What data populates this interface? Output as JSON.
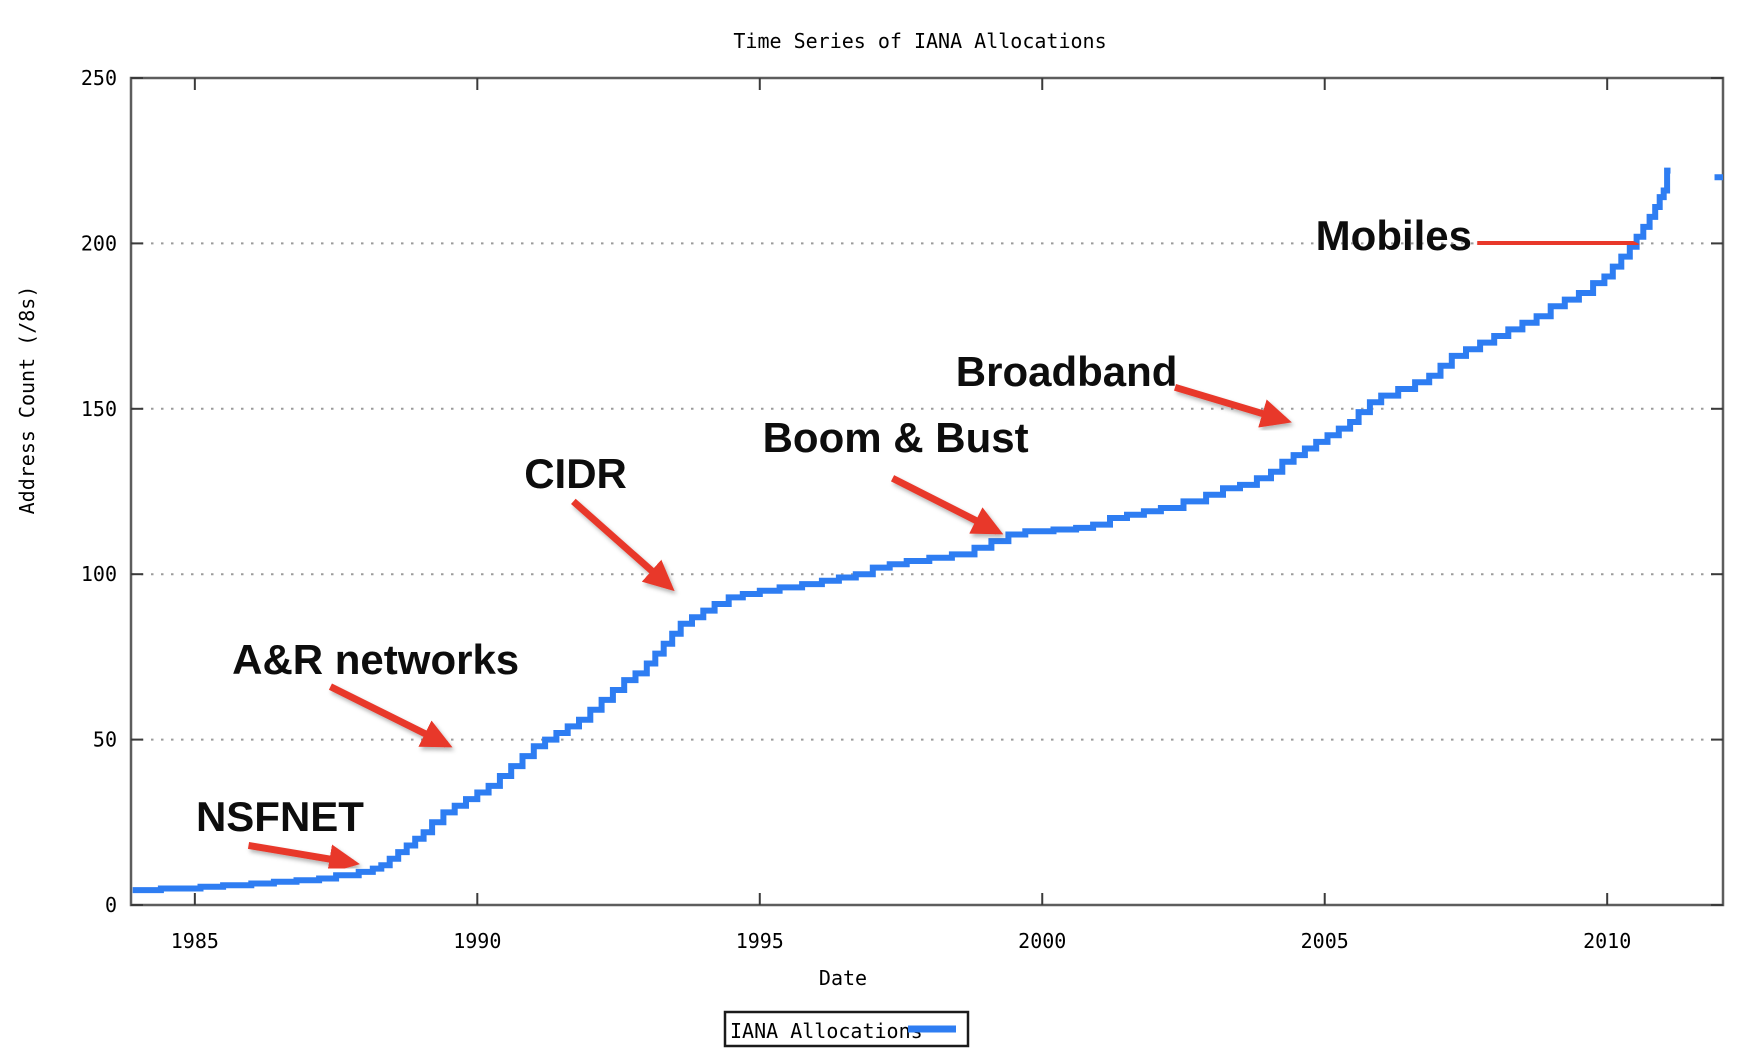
{
  "chart_data": {
    "type": "line",
    "title": "Time Series of IANA Allocations",
    "xlabel": "Date",
    "ylabel": "Address Count (/8s)",
    "xlim": [
      1983.87,
      2012.05
    ],
    "ylim": [
      0,
      250
    ],
    "x_ticks": [
      1985,
      1990,
      1995,
      2000,
      2005,
      2010
    ],
    "x_tick_labels": [
      "1985",
      "1990",
      "1995",
      "2000",
      "2005",
      "2010"
    ],
    "y_ticks": [
      0,
      50,
      100,
      150,
      200,
      250
    ],
    "y_tick_labels": [
      "0",
      "50",
      "100",
      "150",
      "200",
      "250"
    ],
    "grid_y": [
      50,
      100,
      150,
      200
    ],
    "grid_style": "dotted",
    "legend_position": "bottom-center",
    "line_color": "#2e7df2",
    "annotation_color": "#e8392b",
    "legend": {
      "label": "IANA Allocations"
    },
    "series": [
      {
        "name": "IANA Allocations",
        "step": true,
        "points": [
          [
            1983.9,
            4.5
          ],
          [
            1984.4,
            5
          ],
          [
            1985.1,
            5.5
          ],
          [
            1985.5,
            6
          ],
          [
            1986.0,
            6.5
          ],
          [
            1986.4,
            7
          ],
          [
            1986.8,
            7.5
          ],
          [
            1987.2,
            8
          ],
          [
            1987.5,
            9
          ],
          [
            1987.9,
            10
          ],
          [
            1988.15,
            11
          ],
          [
            1988.3,
            12
          ],
          [
            1988.45,
            14
          ],
          [
            1988.6,
            16
          ],
          [
            1988.75,
            18
          ],
          [
            1988.9,
            20
          ],
          [
            1989.05,
            22
          ],
          [
            1989.2,
            25
          ],
          [
            1989.4,
            28
          ],
          [
            1989.6,
            30
          ],
          [
            1989.8,
            32
          ],
          [
            1990.0,
            34
          ],
          [
            1990.2,
            36
          ],
          [
            1990.4,
            39
          ],
          [
            1990.6,
            42
          ],
          [
            1990.8,
            45
          ],
          [
            1991.0,
            48
          ],
          [
            1991.2,
            50
          ],
          [
            1991.4,
            52
          ],
          [
            1991.6,
            54
          ],
          [
            1991.8,
            56
          ],
          [
            1992.0,
            59
          ],
          [
            1992.2,
            62
          ],
          [
            1992.4,
            65
          ],
          [
            1992.6,
            68
          ],
          [
            1992.8,
            70
          ],
          [
            1993.0,
            73
          ],
          [
            1993.15,
            76
          ],
          [
            1993.3,
            79
          ],
          [
            1993.45,
            82
          ],
          [
            1993.6,
            85
          ],
          [
            1993.8,
            87
          ],
          [
            1994.0,
            89
          ],
          [
            1994.2,
            91
          ],
          [
            1994.45,
            93
          ],
          [
            1994.7,
            94
          ],
          [
            1995.0,
            95
          ],
          [
            1995.35,
            96
          ],
          [
            1995.75,
            97
          ],
          [
            1996.1,
            98
          ],
          [
            1996.4,
            99
          ],
          [
            1996.7,
            100
          ],
          [
            1997.0,
            102
          ],
          [
            1997.3,
            103
          ],
          [
            1997.6,
            104
          ],
          [
            1998.0,
            105
          ],
          [
            1998.4,
            106
          ],
          [
            1998.8,
            108
          ],
          [
            1999.1,
            110
          ],
          [
            1999.4,
            112
          ],
          [
            1999.7,
            113
          ],
          [
            2000.2,
            113.5
          ],
          [
            2000.6,
            114
          ],
          [
            2000.9,
            115
          ],
          [
            2001.2,
            117
          ],
          [
            2001.5,
            118
          ],
          [
            2001.8,
            119
          ],
          [
            2002.1,
            120
          ],
          [
            2002.5,
            122
          ],
          [
            2002.9,
            124
          ],
          [
            2003.2,
            126
          ],
          [
            2003.5,
            127
          ],
          [
            2003.8,
            129
          ],
          [
            2004.05,
            131
          ],
          [
            2004.25,
            134
          ],
          [
            2004.45,
            136
          ],
          [
            2004.65,
            138
          ],
          [
            2004.85,
            140
          ],
          [
            2005.05,
            142
          ],
          [
            2005.25,
            144
          ],
          [
            2005.45,
            146
          ],
          [
            2005.6,
            149
          ],
          [
            2005.8,
            152
          ],
          [
            2006.0,
            154
          ],
          [
            2006.3,
            156
          ],
          [
            2006.6,
            158
          ],
          [
            2006.85,
            160
          ],
          [
            2007.05,
            163
          ],
          [
            2007.25,
            166
          ],
          [
            2007.5,
            168
          ],
          [
            2007.75,
            170
          ],
          [
            2008.0,
            172
          ],
          [
            2008.25,
            174
          ],
          [
            2008.5,
            176
          ],
          [
            2008.75,
            178
          ],
          [
            2009.0,
            181
          ],
          [
            2009.25,
            183
          ],
          [
            2009.5,
            185
          ],
          [
            2009.75,
            188
          ],
          [
            2009.95,
            190
          ],
          [
            2010.1,
            193
          ],
          [
            2010.25,
            196
          ],
          [
            2010.4,
            199
          ],
          [
            2010.52,
            202
          ],
          [
            2010.64,
            205
          ],
          [
            2010.75,
            208
          ],
          [
            2010.85,
            211
          ],
          [
            2010.93,
            214
          ],
          [
            2011.0,
            216
          ],
          [
            2011.06,
            222
          ],
          [
            2011.12,
            222
          ]
        ]
      }
    ],
    "extra_segments": [
      [
        [
          2011.9,
          220
        ],
        [
          2012.05,
          220
        ]
      ]
    ],
    "annotations": [
      {
        "label": "NSFNET",
        "label_at": [
          1985.02,
          22.4
        ],
        "arrow_from": [
          1985.95,
          18.0
        ],
        "arrow_to": [
          1987.8,
          12.7
        ]
      },
      {
        "label": "A&R networks",
        "label_at": [
          1985.66,
          69.8
        ],
        "arrow_from": [
          1987.4,
          66.0
        ],
        "arrow_to": [
          1989.45,
          48.6
        ]
      },
      {
        "label": "CIDR",
        "label_at": [
          1990.83,
          126.1
        ],
        "arrow_from": [
          1991.7,
          122.0
        ],
        "arrow_to": [
          1993.4,
          96.3
        ]
      },
      {
        "label": "Boom & Bust",
        "label_at": [
          1995.05,
          137.0
        ],
        "arrow_from": [
          1997.35,
          129.0
        ],
        "arrow_to": [
          1999.2,
          113.0
        ]
      },
      {
        "label": "Broadband",
        "label_at": [
          1998.47,
          156.9
        ],
        "arrow_from": [
          2002.35,
          156.5
        ],
        "arrow_to": [
          2004.3,
          146.5
        ]
      },
      {
        "label": "Mobiles",
        "label_at": [
          2004.84,
          198.0
        ],
        "arrow_from": [
          2007.7,
          200.5
        ],
        "arrow_to": [
          2010.45,
          199.8
        ]
      }
    ]
  }
}
